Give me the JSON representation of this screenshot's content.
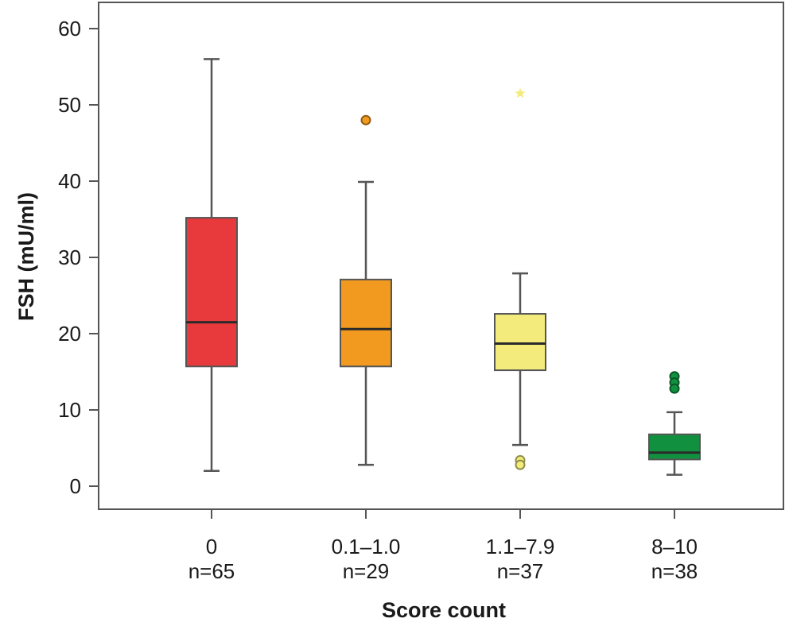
{
  "chart_data": {
    "type": "boxplot",
    "title": "",
    "xlabel": "Score count",
    "ylabel": "FSH (mU/ml)",
    "ylim": [
      -3,
      63
    ],
    "yticks": [
      0,
      10,
      20,
      30,
      40,
      50,
      60
    ],
    "categories": [
      {
        "label": "0",
        "n_label": "n=65",
        "color": "#e8393c",
        "whisker_low": 2,
        "q1": 15.7,
        "median": 21.5,
        "q3": 35.2,
        "whisker_high": 56,
        "outliers": []
      },
      {
        "label": "0.1–1.0",
        "n_label": "n=29",
        "color": "#f19a1f",
        "whisker_low": 2.8,
        "q1": 15.7,
        "median": 20.6,
        "q3": 27.1,
        "whisker_high": 39.9,
        "outliers": [
          {
            "value": 48,
            "marker": "circle"
          }
        ]
      },
      {
        "label": "1.1–7.9",
        "n_label": "n=37",
        "color": "#f3ec7c",
        "whisker_low": 5.4,
        "q1": 15.2,
        "median": 18.7,
        "q3": 22.6,
        "whisker_high": 27.9,
        "outliers": [
          {
            "value": 51.5,
            "marker": "star"
          },
          {
            "value": 3.4,
            "marker": "circle"
          },
          {
            "value": 2.8,
            "marker": "circle"
          }
        ]
      },
      {
        "label": "8–10",
        "n_label": "n=38",
        "color": "#11913f",
        "whisker_low": 1.5,
        "q1": 3.5,
        "median": 4.4,
        "q3": 6.8,
        "whisker_high": 9.7,
        "outliers": [
          {
            "value": 14.4,
            "marker": "circle"
          },
          {
            "value": 13.6,
            "marker": "circle"
          },
          {
            "value": 12.8,
            "marker": "circle"
          }
        ]
      }
    ]
  }
}
